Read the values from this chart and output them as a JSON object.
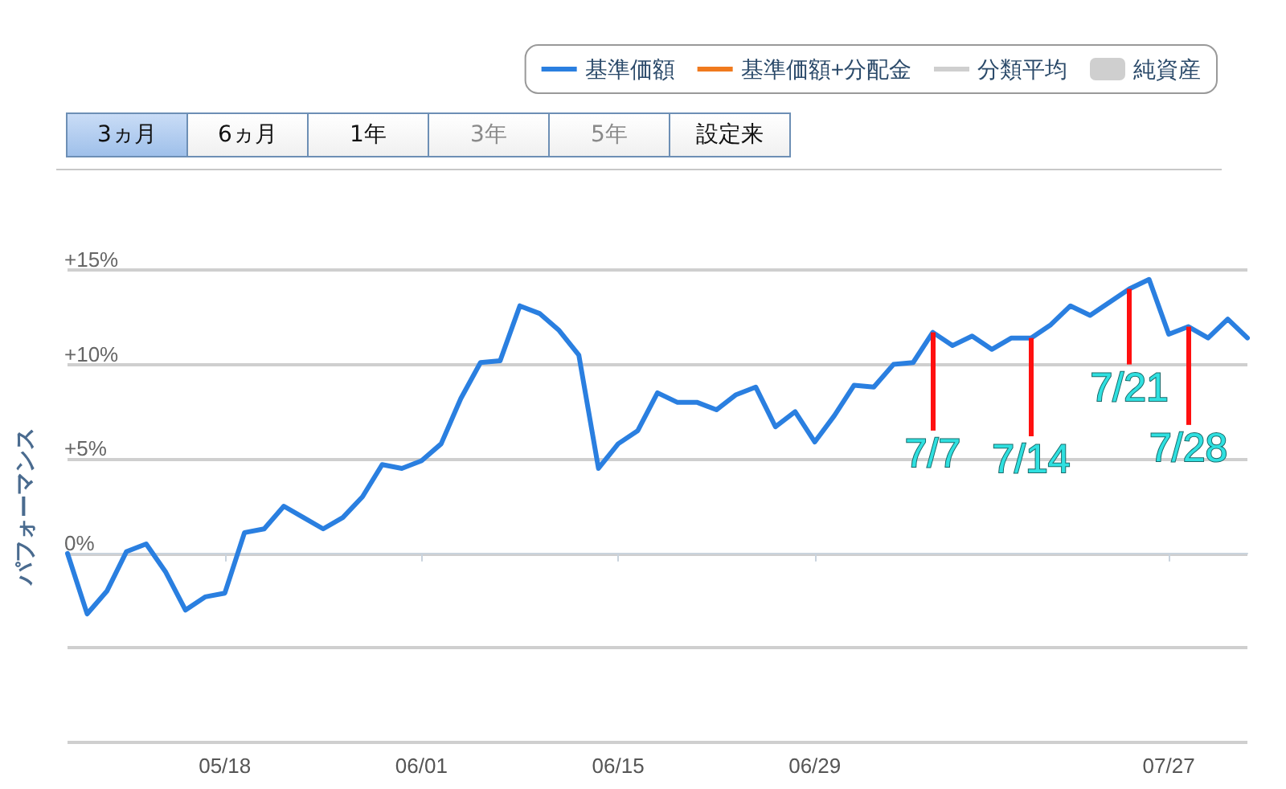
{
  "chart_data": {
    "type": "line",
    "ylabel": "パフォーマンス",
    "categories": [
      null,
      null,
      null,
      null,
      null,
      null,
      null,
      null,
      "05/18",
      null,
      null,
      null,
      null,
      null,
      null,
      null,
      null,
      null,
      "06/01",
      null,
      null,
      null,
      null,
      null,
      null,
      null,
      null,
      null,
      "06/15",
      null,
      null,
      null,
      null,
      null,
      null,
      null,
      null,
      null,
      "06/29",
      null,
      null,
      null,
      null,
      null,
      null,
      null,
      null,
      null,
      null,
      null,
      null,
      null,
      null,
      null,
      null,
      null,
      "07/27",
      null,
      null,
      null,
      null
    ],
    "series": [
      {
        "name": "基準価額",
        "color": "#2a7fe0",
        "values": [
          0,
          -3.2,
          -2.0,
          0.1,
          0.5,
          -1.0,
          -3.0,
          -2.3,
          -2.1,
          1.1,
          1.3,
          2.5,
          1.9,
          1.3,
          1.9,
          3.0,
          4.7,
          4.5,
          4.9,
          5.8,
          8.2,
          10.1,
          10.2,
          13.1,
          12.7,
          11.8,
          10.5,
          4.5,
          5.8,
          6.5,
          8.5,
          8.0,
          8.0,
          7.6,
          8.4,
          8.8,
          6.7,
          7.5,
          5.9,
          7.3,
          8.9,
          8.8,
          10.0,
          10.1,
          11.7,
          11.0,
          11.5,
          10.8,
          11.4,
          11.4,
          12.1,
          13.1,
          12.6,
          13.3,
          14.0,
          14.5,
          11.6,
          12.0,
          11.4,
          12.4,
          11.4
        ]
      },
      {
        "name": "基準価額+分配金",
        "color": "#f07a1e",
        "values": [
          null,
          null,
          null,
          null,
          null,
          null,
          null,
          null,
          null,
          null,
          null,
          null,
          null,
          null,
          null,
          null,
          null,
          null,
          null,
          null,
          null,
          null,
          null,
          null,
          null,
          null,
          null,
          null,
          null,
          null,
          null,
          null,
          null,
          null,
          null,
          null,
          null,
          null,
          null,
          null,
          null,
          null,
          null,
          null,
          null,
          null,
          null,
          null,
          null,
          null,
          null,
          null,
          null,
          null,
          null,
          null,
          null,
          null,
          null,
          null,
          null
        ]
      },
      {
        "name": "分類平均",
        "color": "#cfcfcf",
        "values": [
          null,
          null,
          null,
          null,
          null,
          null,
          null,
          null,
          null,
          null,
          null,
          null,
          null,
          null,
          null,
          null,
          null,
          null,
          null,
          null,
          null,
          null,
          null,
          null,
          null,
          null,
          null,
          null,
          null,
          null,
          null,
          null,
          null,
          null,
          null,
          null,
          null,
          null,
          null,
          null,
          null,
          null,
          null,
          null,
          null,
          null,
          null,
          null,
          null,
          null,
          null,
          null,
          null,
          null,
          null,
          null,
          null,
          null,
          null,
          null,
          null
        ]
      },
      {
        "name": "純資産",
        "type": "bar",
        "color": "#cfcfcf",
        "values": [
          null,
          null,
          null,
          null,
          null,
          null,
          null,
          null,
          null,
          null,
          null,
          null,
          null,
          null,
          null,
          null,
          null,
          null,
          null,
          null,
          null,
          null,
          null,
          null,
          null,
          null,
          null,
          null,
          null,
          null,
          null,
          null,
          null,
          null,
          null,
          null,
          null,
          null,
          null,
          null,
          null,
          null,
          null,
          null,
          null,
          null,
          null,
          null,
          null,
          null,
          null,
          null,
          null,
          null,
          null,
          null,
          null,
          null,
          null,
          null,
          null
        ]
      }
    ],
    "ylim": [
      -10,
      15
    ],
    "yticks": [
      {
        "value": -10,
        "label": null
      },
      {
        "value": -5,
        "label": null
      },
      {
        "value": 0,
        "label": "0%"
      },
      {
        "value": 5,
        "label": "+5%"
      },
      {
        "value": 10,
        "label": "+10%"
      },
      {
        "value": 15,
        "label": "+15%"
      }
    ],
    "grid": "y",
    "legend": "top right",
    "marker": "none",
    "annotations": [
      "3ヵ月",
      "6ヵ月",
      "1年",
      "3年",
      "5年",
      "設定来",
      {
        "text": "7/7",
        "y": 11.7
      },
      {
        "text": "7/14",
        "y": 11.4
      },
      {
        "text": "7/21",
        "y": 14.0
      },
      {
        "text": "7/28",
        "y": 12.0
      }
    ]
  }
}
